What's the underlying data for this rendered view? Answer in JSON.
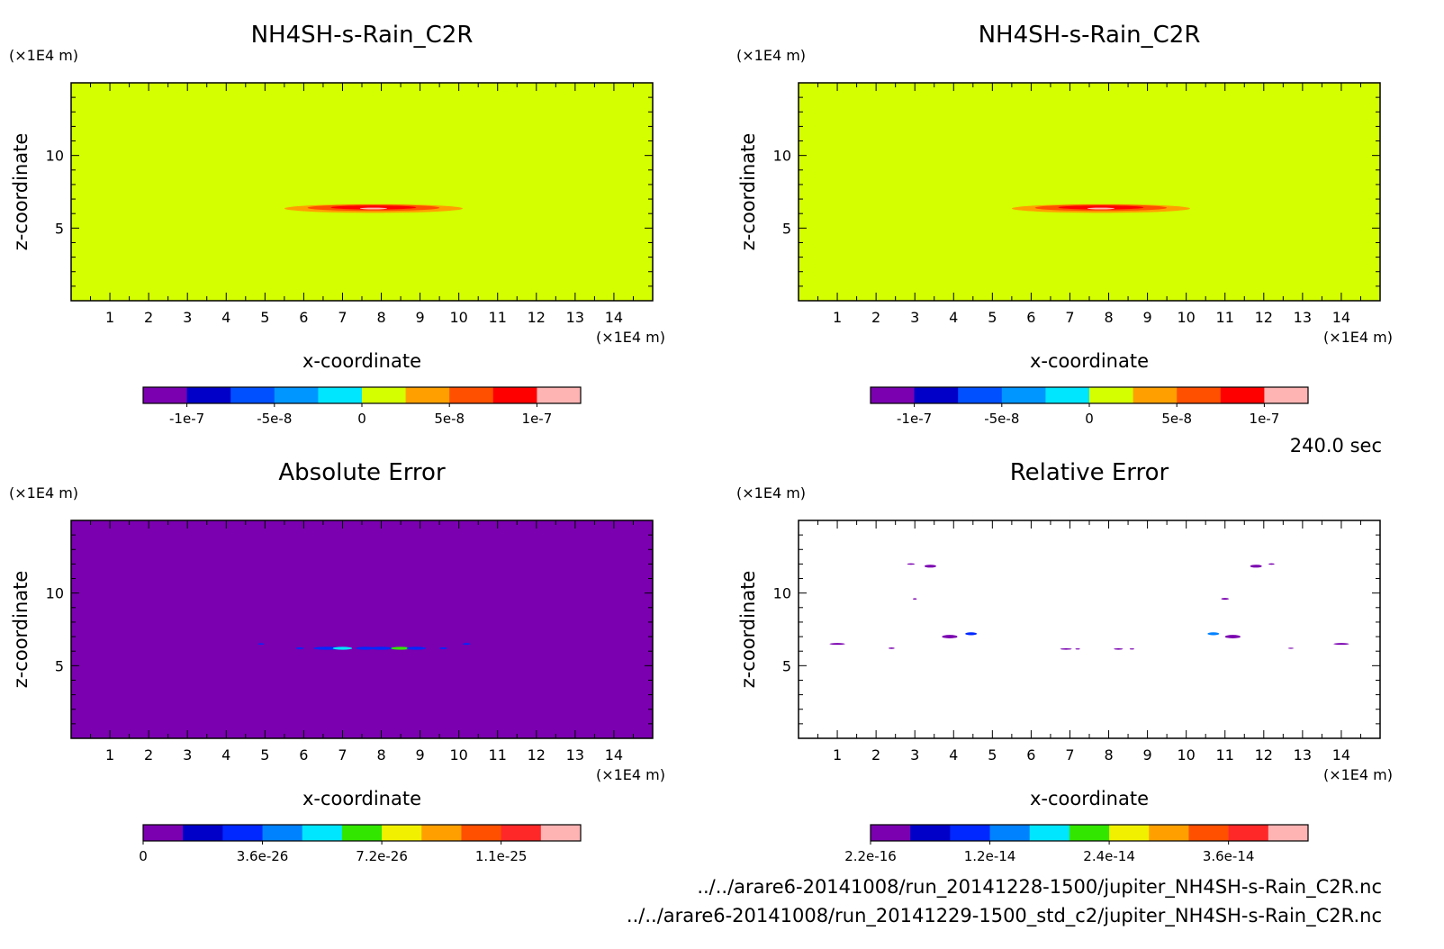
{
  "time_label": "240.0 sec",
  "file_paths": [
    "../../arare6-20141008/run_20141228-1500/jupiter_NH4SH-s-Rain_C2R.nc",
    "../../arare6-20141008/run_20141229-1500_std_c2/jupiter_NH4SH-s-Rain_C2R.nc"
  ],
  "colors": {
    "field_bg": "#d4ff00",
    "abs_bg": "#7a00b0",
    "rel_bg": "#ffffff"
  },
  "chart_data": [
    {
      "type": "heatmap",
      "title": "NH4SH-s-Rain_C2R",
      "xlabel": "x-coordinate",
      "ylabel": "z-coordinate",
      "x_unit": "(×1E4 m)",
      "y_unit": "(×1E4 m)",
      "xlim": [
        0,
        15
      ],
      "ylim": [
        0,
        15
      ],
      "x_ticks": [
        "1",
        "2",
        "3",
        "4",
        "5",
        "6",
        "7",
        "8",
        "9",
        "10",
        "11",
        "12",
        "13",
        "14"
      ],
      "y_ticks": [
        "5",
        "10"
      ],
      "colorbar": {
        "colors": [
          "#7a00b0",
          "#0000c8",
          "#0050ff",
          "#0096ff",
          "#00e6ff",
          "#d4ff00",
          "#ffa000",
          "#ff5000",
          "#ff0000",
          "#ffb4b4"
        ],
        "labels": [
          "-1e-7",
          "-5e-8",
          "0",
          "5e-8",
          "1e-7"
        ]
      },
      "background_value": "0",
      "feature": "thin lens of positive values (up to ~1e-7) centred near x≈7.8, z≈6.4, spanning x≈5.3–9.8"
    },
    {
      "type": "heatmap",
      "title": "NH4SH-s-Rain_C2R",
      "xlabel": "x-coordinate",
      "ylabel": "z-coordinate",
      "x_unit": "(×1E4 m)",
      "y_unit": "(×1E4 m)",
      "xlim": [
        0,
        15
      ],
      "ylim": [
        0,
        15
      ],
      "x_ticks": [
        "1",
        "2",
        "3",
        "4",
        "5",
        "6",
        "7",
        "8",
        "9",
        "10",
        "11",
        "12",
        "13",
        "14"
      ],
      "y_ticks": [
        "5",
        "10"
      ],
      "colorbar": {
        "colors": [
          "#7a00b0",
          "#0000c8",
          "#0050ff",
          "#0096ff",
          "#00e6ff",
          "#d4ff00",
          "#ffa000",
          "#ff5000",
          "#ff0000",
          "#ffb4b4"
        ],
        "labels": [
          "-1e-7",
          "-5e-8",
          "0",
          "5e-8",
          "1e-7"
        ]
      },
      "background_value": "0",
      "feature": "thin lens of positive values (up to ~1e-7) centred near x≈7.8, z≈6.4, spanning x≈5.3–9.8"
    },
    {
      "type": "heatmap",
      "title": "Absolute Error",
      "xlabel": "x-coordinate",
      "ylabel": "z-coordinate",
      "x_unit": "(×1E4 m)",
      "y_unit": "(×1E4 m)",
      "xlim": [
        0,
        15
      ],
      "ylim": [
        0,
        15
      ],
      "x_ticks": [
        "1",
        "2",
        "3",
        "4",
        "5",
        "6",
        "7",
        "8",
        "9",
        "10",
        "11",
        "12",
        "13",
        "14"
      ],
      "y_ticks": [
        "5",
        "10"
      ],
      "colorbar": {
        "colors": [
          "#7a00b0",
          "#0000c8",
          "#0028ff",
          "#0082ff",
          "#00e6ff",
          "#32e600",
          "#f0f000",
          "#ffa000",
          "#ff5000",
          "#ff2828",
          "#ffb4b4"
        ],
        "labels": [
          "0",
          "3.6e-26",
          "7.2e-26",
          "1.1e-25"
        ]
      },
      "background_value": "0",
      "feature": "small error specks (~3.6e-26 to 7.2e-26) along z≈6.2 between x≈4.8 and x≈10.3"
    },
    {
      "type": "heatmap",
      "title": "Relative Error",
      "xlabel": "x-coordinate",
      "ylabel": "z-coordinate",
      "x_unit": "(×1E4 m)",
      "y_unit": "(×1E4 m)",
      "xlim": [
        0,
        15
      ],
      "ylim": [
        0,
        15
      ],
      "x_ticks": [
        "1",
        "2",
        "3",
        "4",
        "5",
        "6",
        "7",
        "8",
        "9",
        "10",
        "11",
        "12",
        "13",
        "14"
      ],
      "y_ticks": [
        "5",
        "10"
      ],
      "colorbar": {
        "colors": [
          "#7a00b0",
          "#0000c8",
          "#0028ff",
          "#0082ff",
          "#00e6ff",
          "#32e600",
          "#f0f000",
          "#ffa000",
          "#ff5000",
          "#ff2828",
          "#ffb4b4"
        ],
        "labels": [
          "2.2e-16",
          "1.2e-14",
          "2.4e-14",
          "3.6e-14"
        ]
      },
      "background_value": "undefined (white)",
      "feature": "isolated small patches at roughly (1,6.5),(2.4,6.2),(3,12),(3.4,11.9),(3,9.6),(3.9,7),(4.5,7.2),(7,6.2),(8.3,6.2),(10.7,7.2),(11.2,7),(11,9.6),(11.8,11.9),(12.2,12),(12.7,6.2),(14,6.5)"
    }
  ]
}
